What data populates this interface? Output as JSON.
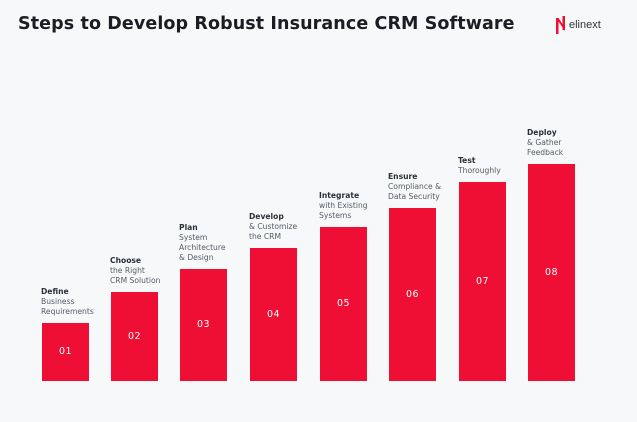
{
  "title": "Steps to Develop Robust Insurance CRM Software",
  "logo": {
    "text": "elinext"
  },
  "accent_color": "#ef0e34",
  "steps": [
    {
      "number": "01",
      "heading": "Define",
      "lines": [
        "Business",
        "Requirements"
      ]
    },
    {
      "number": "02",
      "heading": "Choose",
      "lines": [
        "the Right",
        "CRM Solution"
      ]
    },
    {
      "number": "03",
      "heading": "Plan",
      "lines": [
        "System",
        "Architecture",
        "& Design"
      ]
    },
    {
      "number": "04",
      "heading": "Develop",
      "lines": [
        "& Customize",
        "the CRM"
      ]
    },
    {
      "number": "05",
      "heading": "Integrate",
      "lines": [
        "with Existing",
        "Systems"
      ]
    },
    {
      "number": "06",
      "heading": "Ensure",
      "lines": [
        "Compliance &",
        "Data Security"
      ]
    },
    {
      "number": "07",
      "heading": "Test",
      "lines": [
        "Thoroughly"
      ]
    },
    {
      "number": "08",
      "heading": "Deploy",
      "lines": [
        "& Gather",
        "Feedback"
      ]
    }
  ]
}
